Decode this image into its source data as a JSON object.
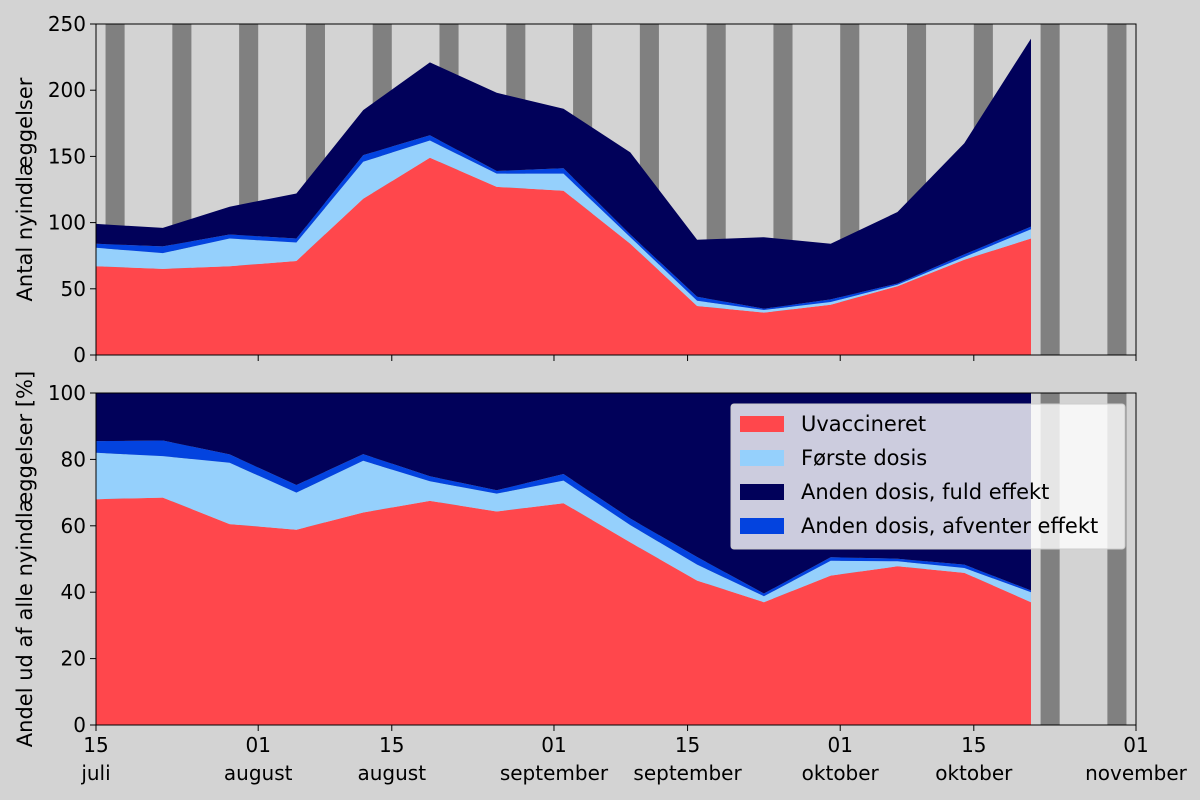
{
  "chart_data": [
    {
      "type": "area",
      "stacked": true,
      "ylabel": "Antal nyindlæggelser",
      "ylim": [
        0,
        250
      ],
      "yticks": [
        0,
        50,
        100,
        150,
        200,
        250
      ],
      "x": [
        "2021-07-15",
        "2021-07-22",
        "2021-07-29",
        "2021-08-05",
        "2021-08-12",
        "2021-08-19",
        "2021-08-26",
        "2021-09-02",
        "2021-09-09",
        "2021-09-16",
        "2021-09-23",
        "2021-09-30",
        "2021-10-07",
        "2021-10-14",
        "2021-10-21"
      ],
      "series": [
        {
          "name": "Uvaccineret",
          "color": "#ff474c",
          "values": [
            67,
            65,
            67,
            71,
            118,
            149,
            127,
            124,
            84,
            37,
            32,
            38,
            52,
            72,
            88
          ]
        },
        {
          "name": "Første dosis",
          "color": "#95d0fc",
          "values": [
            14,
            12,
            21,
            14,
            28,
            13,
            10,
            13,
            5,
            4,
            2,
            2,
            1,
            2,
            7
          ]
        },
        {
          "name": "Anden dosis, afventer effekt",
          "color": "#0343df",
          "values": [
            3,
            5,
            3,
            3,
            5,
            4,
            2,
            4,
            2,
            3,
            1,
            2,
            1,
            2,
            2
          ]
        },
        {
          "name": "Anden dosis, fuld effekt",
          "color": "#01015a",
          "values": [
            15,
            14,
            21,
            34,
            34,
            55,
            59,
            45,
            62,
            43,
            54,
            42,
            54,
            84,
            142
          ]
        }
      ]
    },
    {
      "type": "area",
      "stacked": true,
      "ylabel": "Andel ud af alle nyindlæggelser [%]",
      "ylim": [
        0,
        100
      ],
      "yticks": [
        0,
        20,
        40,
        60,
        80,
        100
      ],
      "x": [
        "2021-07-15",
        "2021-07-22",
        "2021-07-29",
        "2021-08-05",
        "2021-08-12",
        "2021-08-19",
        "2021-08-26",
        "2021-09-02",
        "2021-09-09",
        "2021-09-16",
        "2021-09-23",
        "2021-09-30",
        "2021-10-07",
        "2021-10-14",
        "2021-10-21"
      ],
      "series": [
        {
          "name": "Uvaccineret",
          "color": "#ff474c",
          "values": [
            68,
            68.5,
            60.5,
            58.8,
            64,
            67.5,
            64.3,
            66.8,
            55,
            43.5,
            37,
            45,
            47.8,
            45.8,
            37
          ]
        },
        {
          "name": "Første dosis",
          "color": "#95d0fc",
          "values": [
            14,
            12.5,
            18.5,
            11.2,
            15.6,
            5.9,
            5.4,
            6.8,
            5.2,
            4.8,
            1.8,
            4.5,
            1.5,
            1.5,
            3
          ]
        },
        {
          "name": "Anden dosis, afventer effekt",
          "color": "#0343df",
          "values": [
            3.5,
            4.7,
            2.5,
            2.3,
            2,
            1.5,
            1,
            2,
            2,
            2.3,
            0.8,
            1,
            0.8,
            1,
            0.5
          ]
        },
        {
          "name": "Anden dosis, fuld effekt",
          "color": "#01015a",
          "values": [
            14.5,
            14.3,
            18.5,
            27.7,
            18.4,
            25.1,
            29.3,
            24.4,
            37.8,
            49.4,
            60.4,
            49.5,
            49.9,
            51.7,
            59.5
          ]
        }
      ]
    }
  ],
  "x_axis": {
    "domain": [
      "2021-07-15",
      "2021-11-01"
    ],
    "ticks": [
      {
        "date": "2021-07-15",
        "day": "15",
        "month": "juli"
      },
      {
        "date": "2021-08-01",
        "day": "01",
        "month": "august"
      },
      {
        "date": "2021-08-15",
        "day": "15",
        "month": "august"
      },
      {
        "date": "2021-09-01",
        "day": "01",
        "month": "september"
      },
      {
        "date": "2021-09-15",
        "day": "15",
        "month": "september"
      },
      {
        "date": "2021-10-01",
        "day": "01",
        "month": "oktober"
      },
      {
        "date": "2021-10-15",
        "day": "15",
        "month": "oktober"
      },
      {
        "date": "2021-11-01",
        "day": "01",
        "month": "november"
      }
    ]
  },
  "weekend_bands": {
    "color": "#808080",
    "first_start": "2021-07-16",
    "period_days": 7,
    "length_days": 2
  },
  "legend": {
    "placement": "upper-right of lower panel",
    "entries": [
      {
        "label": "Uvaccineret",
        "color": "#ff474c"
      },
      {
        "label": "Første dosis",
        "color": "#95d0fc"
      },
      {
        "label": "Anden dosis, fuld effekt",
        "color": "#01015a"
      },
      {
        "label": "Anden dosis, afventer effekt",
        "color": "#0343df"
      }
    ]
  },
  "colors": {
    "background": "#d3d3d3",
    "weekend": "#808080"
  }
}
